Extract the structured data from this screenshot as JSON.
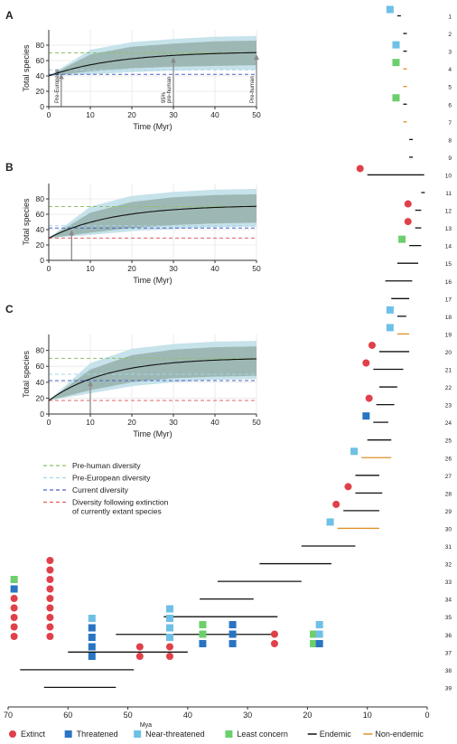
{
  "chart_data": [
    {
      "panel": "A",
      "type": "line",
      "xlabel": "Time (Myr)",
      "ylabel": "Total species",
      "xlim": [
        0,
        50
      ],
      "ylim": [
        0,
        100
      ],
      "xticks": [
        0,
        10,
        20,
        30,
        40,
        50
      ],
      "yticks": [
        0,
        20,
        40,
        60,
        80
      ],
      "grid": true,
      "curve": {
        "start": 40,
        "asymptote": 72,
        "rate": 0.06
      },
      "band_inner": {
        "lower": [
          40,
          46,
          50,
          52,
          53,
          54
        ],
        "upper": [
          40,
          68,
          78,
          82,
          85,
          86
        ],
        "x": [
          0,
          10,
          20,
          30,
          40,
          50
        ]
      },
      "band_outer": {
        "lower": [
          40,
          42,
          45,
          47,
          48,
          48
        ],
        "upper": [
          40,
          74,
          84,
          88,
          91,
          92
        ],
        "x": [
          0,
          10,
          20,
          30,
          40,
          50
        ]
      },
      "reference_lines": [
        {
          "series": "Pre-human diversity",
          "y": 70,
          "color": "#8dc06c"
        },
        {
          "series": "Pre-European diversity",
          "y": 48,
          "color": "#a8d4e8"
        },
        {
          "series": "Current diversity",
          "y": 42,
          "color": "#4c63c8"
        }
      ],
      "annotations": [
        {
          "x": 3,
          "label": "Pre-European"
        },
        {
          "x": 30,
          "label": "95% pre-human"
        },
        {
          "x": 50,
          "label": "Pre-human"
        }
      ]
    },
    {
      "panel": "B",
      "type": "line",
      "xlabel": "Time (Myr)",
      "ylabel": "Total species",
      "xlim": [
        0,
        50
      ],
      "ylim": [
        0,
        100
      ],
      "xticks": [
        0,
        10,
        20,
        30,
        40,
        50
      ],
      "yticks": [
        0,
        20,
        40,
        60,
        80
      ],
      "grid": true,
      "curve": {
        "start": 29,
        "asymptote": 72,
        "rate": 0.065
      },
      "band_inner": {
        "lower": [
          29,
          36,
          42,
          46,
          48,
          49
        ],
        "upper": [
          29,
          62,
          76,
          82,
          85,
          86
        ],
        "x": [
          0,
          10,
          20,
          30,
          40,
          50
        ]
      },
      "band_outer": {
        "lower": [
          29,
          33,
          38,
          41,
          43,
          44
        ],
        "upper": [
          29,
          70,
          84,
          89,
          92,
          93
        ],
        "x": [
          0,
          10,
          20,
          30,
          40,
          50
        ]
      },
      "reference_lines": [
        {
          "series": "Pre-human diversity",
          "y": 70,
          "color": "#8dc06c"
        },
        {
          "series": "Pre-European diversity",
          "y": 45,
          "color": "#a8d4e8"
        },
        {
          "series": "Current diversity",
          "y": 42,
          "color": "#4c63c8"
        },
        {
          "series": "Diversity following extinction of currently extant species",
          "y": 29,
          "color": "#e06060"
        }
      ],
      "annotations": [
        {
          "x": 5.5,
          "label": ""
        }
      ]
    },
    {
      "panel": "C",
      "type": "line",
      "xlabel": "Time (Myr)",
      "ylabel": "Total species",
      "xlim": [
        0,
        50
      ],
      "ylim": [
        0,
        100
      ],
      "xticks": [
        0,
        10,
        20,
        30,
        40,
        50
      ],
      "yticks": [
        0,
        20,
        40,
        60,
        80
      ],
      "grid": true,
      "curve": {
        "start": 17,
        "asymptote": 71,
        "rate": 0.07
      },
      "band_inner": {
        "lower": [
          17,
          30,
          40,
          45,
          47,
          48
        ],
        "upper": [
          17,
          56,
          74,
          81,
          84,
          85
        ],
        "x": [
          0,
          10,
          20,
          30,
          40,
          50
        ]
      },
      "band_outer": {
        "lower": [
          17,
          26,
          35,
          40,
          43,
          44
        ],
        "upper": [
          17,
          64,
          82,
          88,
          91,
          92
        ],
        "x": [
          0,
          10,
          20,
          30,
          40,
          50
        ]
      },
      "reference_lines": [
        {
          "series": "Pre-human diversity",
          "y": 70,
          "color": "#8dc06c"
        },
        {
          "series": "Pre-European diversity",
          "y": 50,
          "color": "#a8d4e8"
        },
        {
          "series": "Current diversity",
          "y": 42,
          "color": "#4c63c8"
        },
        {
          "series": "Diversity following extinction of currently extant species",
          "y": 17,
          "color": "#e06060"
        }
      ],
      "annotations": [
        {
          "x": 10,
          "label": ""
        }
      ]
    },
    {
      "panel": "timeline",
      "type": "bar",
      "xlabel": "Mya",
      "xlim": [
        70,
        0
      ],
      "xticks": [
        70,
        60,
        50,
        40,
        30,
        20,
        10,
        0
      ],
      "lineages": [
        {
          "id": "1",
          "start": 5,
          "end": 5,
          "type": "endemic",
          "status": [
            "Near-threatened"
          ]
        },
        {
          "id": "2",
          "start": 4,
          "end": 4,
          "type": "endemic",
          "status": []
        },
        {
          "id": "3",
          "start": 4,
          "end": 4,
          "type": "endemic",
          "status": [
            "Near-threatened"
          ]
        },
        {
          "id": "4",
          "start": 4,
          "end": 4,
          "type": "non-endemic",
          "status": [
            "Least concern"
          ]
        },
        {
          "id": "5",
          "start": 4,
          "end": 4,
          "type": "non-endemic",
          "status": []
        },
        {
          "id": "6",
          "start": 4,
          "end": 4,
          "type": "endemic",
          "status": [
            "Least concern"
          ]
        },
        {
          "id": "7",
          "start": 4,
          "end": 4,
          "type": "non-endemic",
          "status": []
        },
        {
          "id": "8",
          "start": 3,
          "end": 3,
          "type": "endemic",
          "status": []
        },
        {
          "id": "9",
          "start": 3,
          "end": 3,
          "type": "endemic",
          "status": []
        },
        {
          "id": "10",
          "start": 10,
          "end": 0.5,
          "type": "endemic",
          "status": [
            "Extinct"
          ]
        },
        {
          "id": "11",
          "start": 1,
          "end": 1,
          "type": "endemic",
          "status": []
        },
        {
          "id": "12",
          "start": 2,
          "end": 1,
          "type": "endemic",
          "status": [
            "Extinct"
          ]
        },
        {
          "id": "13",
          "start": 2,
          "end": 1,
          "type": "endemic",
          "status": [
            "Extinct"
          ]
        },
        {
          "id": "14",
          "start": 3,
          "end": 1,
          "type": "endemic",
          "status": [
            "Least concern"
          ]
        },
        {
          "id": "15",
          "start": 5,
          "end": 1.5,
          "type": "endemic",
          "status": []
        },
        {
          "id": "16",
          "start": 7,
          "end": 2.5,
          "type": "endemic",
          "status": []
        },
        {
          "id": "17",
          "start": 6,
          "end": 3,
          "type": "endemic",
          "status": []
        },
        {
          "id": "18",
          "start": 5,
          "end": 3.5,
          "type": "endemic",
          "status": [
            "Near-threatened"
          ]
        },
        {
          "id": "19",
          "start": 5,
          "end": 3,
          "type": "non-endemic",
          "status": [
            "Near-threatened"
          ]
        },
        {
          "id": "20",
          "start": 8,
          "end": 3,
          "type": "endemic",
          "status": [
            "Extinct"
          ]
        },
        {
          "id": "21",
          "start": 9,
          "end": 4,
          "type": "endemic",
          "status": [
            "Extinct"
          ]
        },
        {
          "id": "22",
          "start": 8,
          "end": 5,
          "type": "endemic",
          "status": []
        },
        {
          "id": "23",
          "start": 8.5,
          "end": 5.5,
          "type": "endemic",
          "status": [
            "Extinct"
          ]
        },
        {
          "id": "24",
          "start": 9,
          "end": 6.5,
          "type": "endemic",
          "status": [
            "Threatened"
          ]
        },
        {
          "id": "25",
          "start": 10,
          "end": 6,
          "type": "endemic",
          "status": []
        },
        {
          "id": "26",
          "start": 11,
          "end": 6,
          "type": "non-endemic",
          "status": [
            "Near-threatened"
          ]
        },
        {
          "id": "27",
          "start": 12,
          "end": 8,
          "type": "endemic",
          "status": []
        },
        {
          "id": "28",
          "start": 12,
          "end": 7.5,
          "type": "endemic",
          "status": [
            "Extinct"
          ]
        },
        {
          "id": "29",
          "start": 14,
          "end": 8,
          "type": "endemic",
          "status": [
            "Extinct"
          ]
        },
        {
          "id": "30",
          "start": 15,
          "end": 8,
          "type": "non-endemic",
          "status": [
            "Near-threatened"
          ]
        },
        {
          "id": "31",
          "start": 21,
          "end": 12,
          "type": "endemic",
          "status": []
        },
        {
          "id": "32",
          "start": 28,
          "end": 16,
          "type": "endemic",
          "status": []
        },
        {
          "id": "33",
          "start": 35,
          "end": 21,
          "type": "endemic",
          "status": []
        },
        {
          "id": "34",
          "start": 38,
          "end": 29,
          "type": "endemic",
          "status": []
        },
        {
          "id": "35",
          "start": 44,
          "end": 25,
          "type": "endemic",
          "status": []
        },
        {
          "id": "36",
          "start": 52,
          "end": 25,
          "type": "endemic",
          "status": []
        },
        {
          "id": "37",
          "start": 60,
          "end": 40,
          "type": "endemic",
          "status": []
        },
        {
          "id": "38",
          "start": 68,
          "end": 49,
          "type": "endemic",
          "status": []
        },
        {
          "id": "39",
          "start": 64,
          "end": 52,
          "type": "endemic",
          "status": []
        }
      ],
      "status_columns": [
        {
          "mya": 69,
          "stack": [
            "Least concern",
            "Threatened",
            "Extinct",
            "Extinct",
            "Extinct",
            "Extinct",
            "Extinct"
          ]
        },
        {
          "mya": 63,
          "stack": [
            "Extinct",
            "Extinct",
            "Extinct",
            "Extinct",
            "Extinct",
            "Extinct",
            "Extinct",
            "Extinct",
            "Extinct"
          ]
        },
        {
          "mya": 56,
          "stack": [
            "Near-threatened",
            "Threatened",
            "Threatened",
            "Threatened",
            "Threatened"
          ]
        },
        {
          "mya": 48,
          "stack": [
            "Extinct",
            "Extinct"
          ]
        },
        {
          "mya": 43,
          "stack": [
            "Near-threatened",
            "Near-threatened",
            "Near-threatened",
            "Near-threatened",
            "Extinct",
            "Extinct"
          ]
        },
        {
          "mya": 37.5,
          "stack": [
            "Least concern",
            "Least concern",
            "Threatened"
          ]
        },
        {
          "mya": 32.5,
          "stack": [
            "Threatened",
            "Threatened",
            "Threatened"
          ]
        },
        {
          "mya": 25.5,
          "stack": [
            "Extinct",
            "Extinct"
          ]
        },
        {
          "mya": 19,
          "stack": [
            "Least concern",
            "Least concern"
          ]
        },
        {
          "mya": 18,
          "stack": [
            "Near-threatened",
            "Near-threatened",
            "Threatened"
          ]
        }
      ]
    }
  ],
  "legend_top": [
    {
      "label": "Pre-human diversity",
      "color": "#8dc06c"
    },
    {
      "label": "Pre-European diversity",
      "color": "#a8d4e8"
    },
    {
      "label": "Current diversity",
      "color": "#4c63c8"
    },
    {
      "label": "Diversity following extinction",
      "label2": "of currently extant species",
      "color": "#e06060"
    }
  ],
  "legend_bottom": [
    {
      "label": "Extinct",
      "kind": "circle",
      "color": "#e0404a"
    },
    {
      "label": "Threatened",
      "kind": "square",
      "color": "#2a74c4"
    },
    {
      "label": "Near-threatened",
      "kind": "square",
      "color": "#6ec0e6"
    },
    {
      "label": "Least concern",
      "kind": "square",
      "color": "#6ccf6c"
    },
    {
      "label": "Endemic",
      "kind": "line",
      "color": "#111111"
    },
    {
      "label": "Non-endemic",
      "kind": "line",
      "color": "#e0902a"
    }
  ],
  "status_colors": {
    "Extinct": "#e0404a",
    "Threatened": "#2a74c4",
    "Near-threatened": "#6ec0e6",
    "Least concern": "#6ccf6c"
  },
  "line_colors": {
    "endemic": "#111111",
    "non-endemic": "#e0902a",
    "curve": "#111111",
    "annotation": "#8a8a8a"
  },
  "band_colors": {
    "outer": "#c6e2ea",
    "inner": "#8fa9a2",
    "inner_opacity": 0.75
  }
}
